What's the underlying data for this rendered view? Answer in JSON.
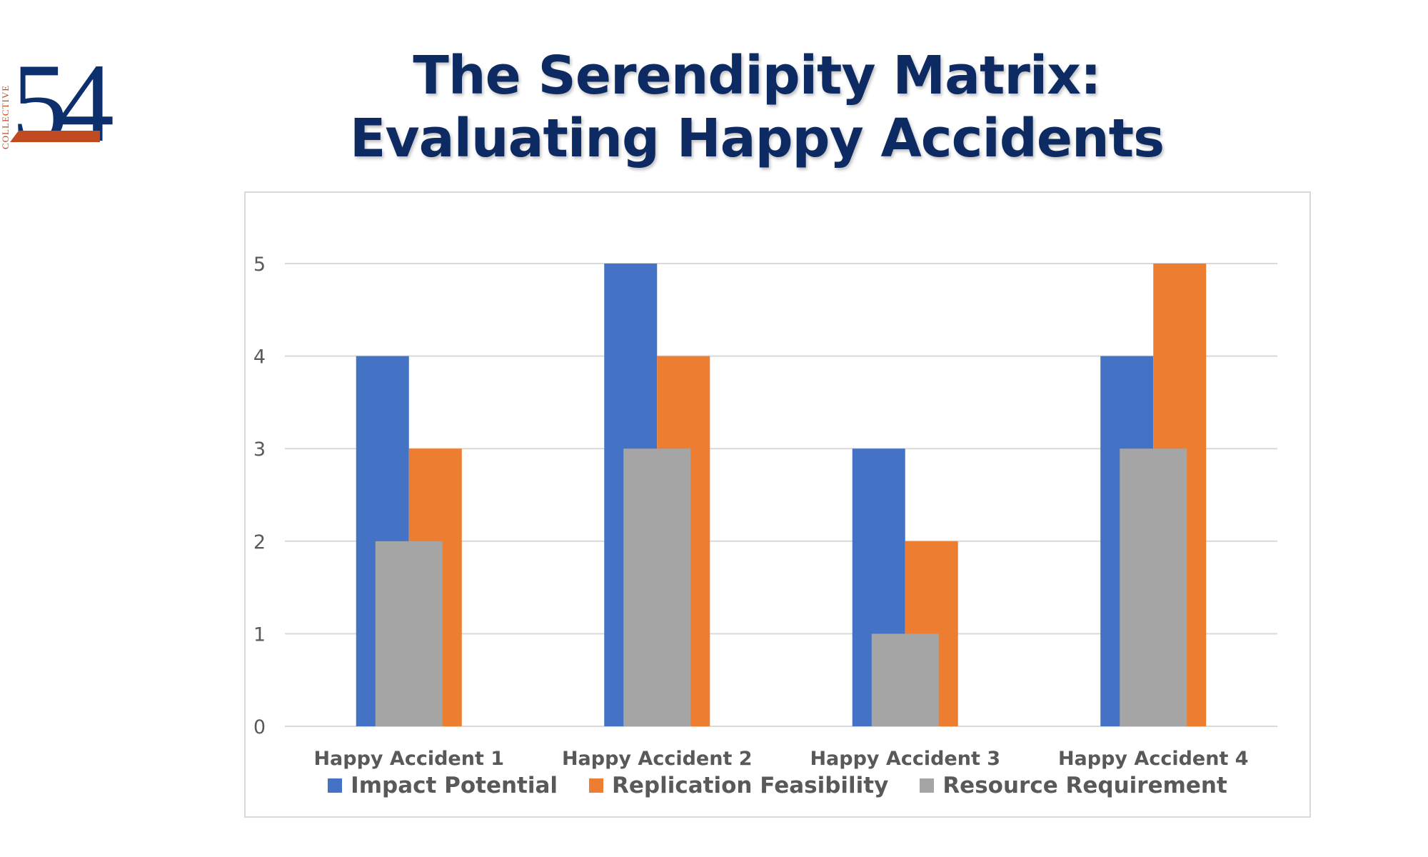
{
  "logo": {
    "number": "54",
    "side_text": "COLLECTIVE"
  },
  "title": {
    "line1": "The Serendipity Matrix:",
    "line2": "Evaluating Happy Accidents"
  },
  "colors": {
    "Impact Potential": "#4472c4",
    "Replication Feasibility": "#ed7d31",
    "Resource Requirement": "#a5a5a5"
  },
  "chart_data": {
    "type": "bar",
    "categories": [
      "Happy Accident 1",
      "Happy Accident 2",
      "Happy Accident 3",
      "Happy Accident 4"
    ],
    "series": [
      {
        "name": "Impact Potential",
        "values": [
          4,
          5,
          3,
          4
        ]
      },
      {
        "name": "Replication Feasibility",
        "values": [
          3,
          4,
          2,
          5
        ]
      },
      {
        "name": "Resource Requirement",
        "values": [
          2,
          3,
          1,
          3
        ]
      }
    ],
    "ylim": [
      0,
      5
    ],
    "yticks": [
      0,
      1,
      2,
      3,
      4,
      5
    ],
    "grid": true,
    "legend": "bottom"
  }
}
